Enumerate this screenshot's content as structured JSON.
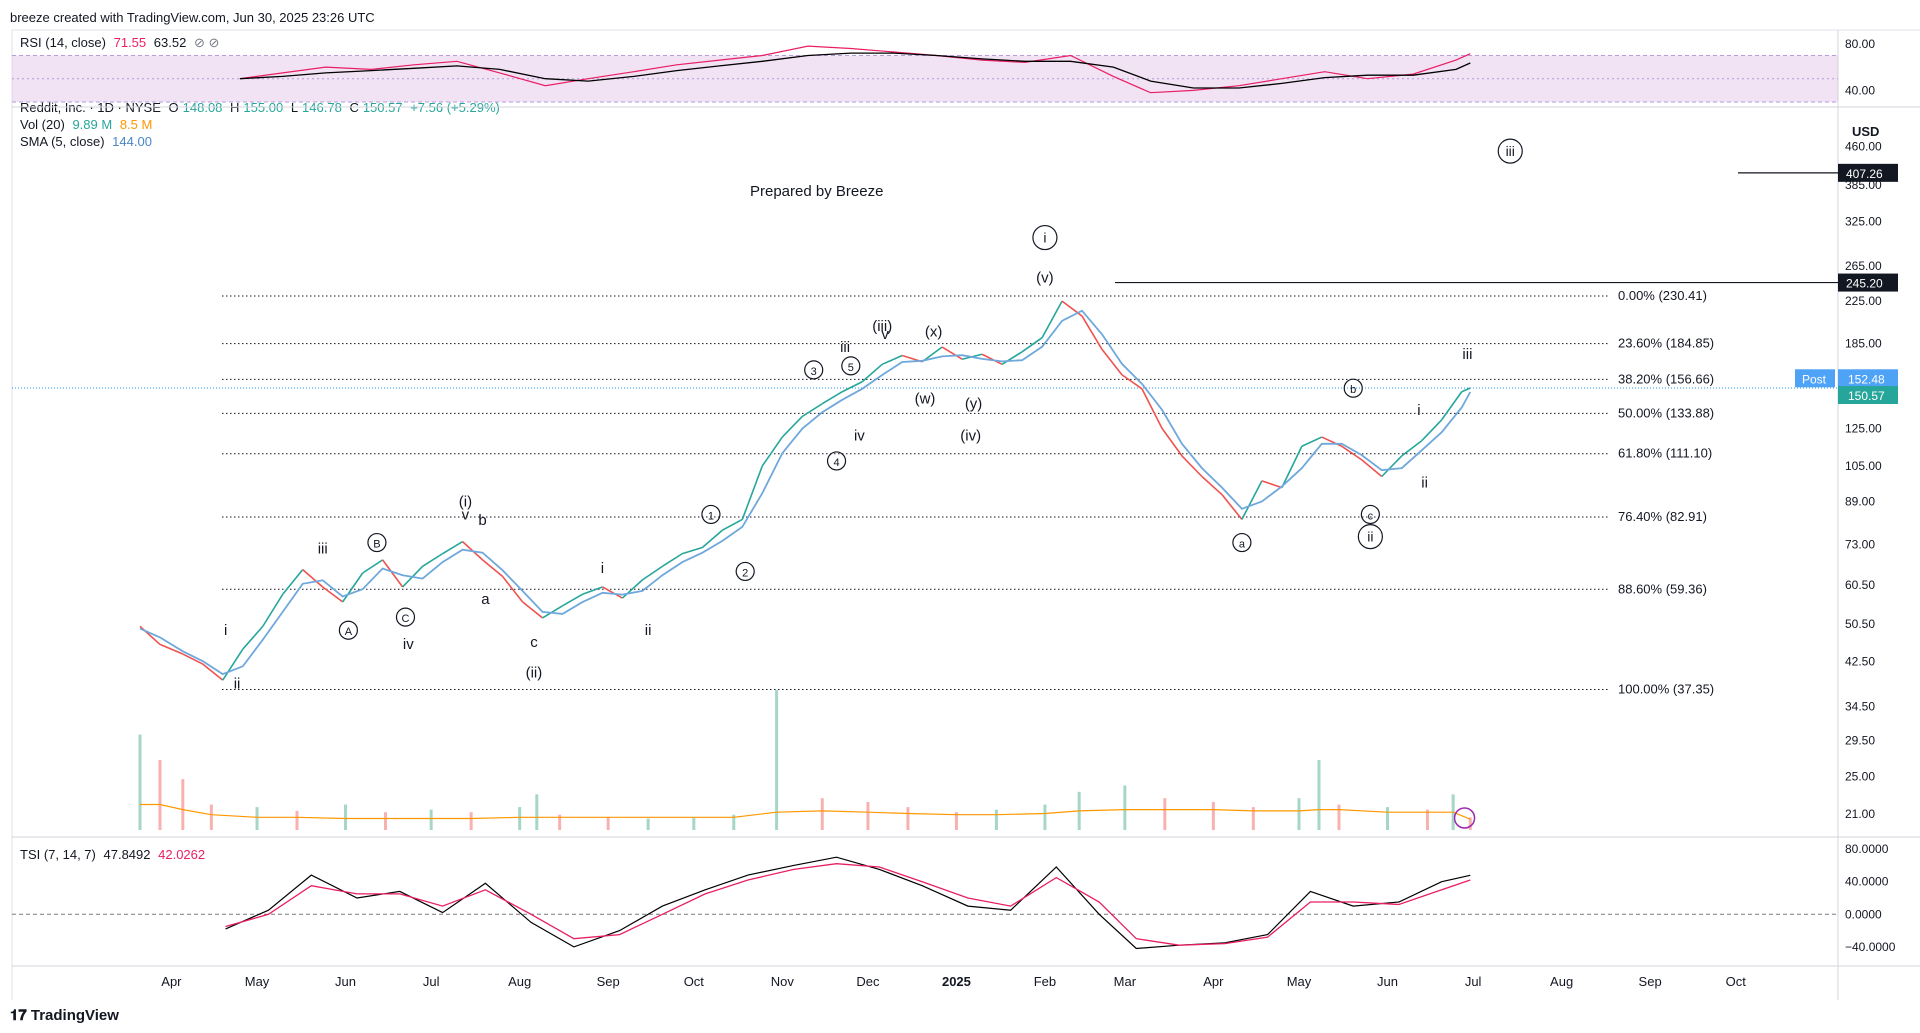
{
  "header": {
    "attribution": "breeze created with TradingView.com, Jun 30, 2025 23:26 UTC"
  },
  "footer": {
    "brand": "TradingView"
  },
  "legend": {
    "symbol": "Reddit, Inc. · 1D · NYSE",
    "o_label": "O",
    "o": "148.08",
    "h_label": "H",
    "h": "155.00",
    "l_label": "L",
    "l": "146.78",
    "c_label": "C",
    "c": "150.57",
    "chg": "+7.56 (+5.29%)",
    "vol_label": "Vol (20)",
    "vol_v1": "9.89 M",
    "vol_v2": "8.5 M",
    "sma_label": "SMA (5, close)",
    "sma_v": "144.00",
    "rsi_label": "RSI (14, close)",
    "rsi_v1": "71.55",
    "rsi_v2": "63.52",
    "rsi_icons": "⊘ ⊘",
    "tsi_label": "TSI (7, 14, 7)",
    "tsi_v1": "47.8492",
    "tsi_v2": "42.0262"
  },
  "annotation_title": "Prepared by Breeze",
  "colors": {
    "up": "#26a69a",
    "down": "#ef5350",
    "sma": "#6fa8dc",
    "rsi": "#e91e63",
    "rsi_ma": "#000000",
    "rsi_band": "#e1bee7",
    "vol_ma": "#ff9800",
    "tsi": "#000000",
    "tsi_signal": "#e91e63",
    "price_tag": "#2196f3"
  },
  "chart_data": {
    "type": "line",
    "symbol": "RDDT",
    "y_scale": "log",
    "currency": "USD",
    "ylim": [
      19.5,
      520
    ],
    "price_axis_ticks": [
      "460.00",
      "385.00",
      "325.00",
      "265.00",
      "225.00",
      "185.00",
      "125.00",
      "105.00",
      "89.00",
      "73.00",
      "60.50",
      "50.50",
      "42.50",
      "34.50",
      "29.50",
      "25.00",
      "21.00"
    ],
    "x_months": [
      "Apr",
      "May",
      "Jun",
      "Jul",
      "Aug",
      "Sep",
      "Oct",
      "Nov",
      "Dec",
      "2025",
      "Feb",
      "Mar",
      "Apr",
      "May",
      "Jun",
      "Jul",
      "Aug",
      "Sep",
      "Oct"
    ],
    "series": [
      {
        "name": "Reddit, Inc.",
        "x": [
          "2024-03-21",
          "2024-03-28",
          "2024-04-05",
          "2024-04-12",
          "2024-04-19",
          "2024-04-26",
          "2024-05-03",
          "2024-05-10",
          "2024-05-17",
          "2024-05-24",
          "2024-05-31",
          "2024-06-07",
          "2024-06-14",
          "2024-06-21",
          "2024-06-28",
          "2024-07-05",
          "2024-07-12",
          "2024-07-19",
          "2024-07-26",
          "2024-08-02",
          "2024-08-09",
          "2024-08-16",
          "2024-08-23",
          "2024-08-30",
          "2024-09-06",
          "2024-09-13",
          "2024-09-20",
          "2024-09-27",
          "2024-10-04",
          "2024-10-11",
          "2024-10-18",
          "2024-10-25",
          "2024-11-01",
          "2024-11-08",
          "2024-11-15",
          "2024-11-22",
          "2024-11-29",
          "2024-12-06",
          "2024-12-13",
          "2024-12-20",
          "2024-12-27",
          "2025-01-03",
          "2025-01-10",
          "2025-01-17",
          "2025-01-24",
          "2025-01-31",
          "2025-02-07",
          "2025-02-14",
          "2025-02-21",
          "2025-02-28",
          "2025-03-07",
          "2025-03-14",
          "2025-03-21",
          "2025-03-28",
          "2025-04-04",
          "2025-04-11",
          "2025-04-18",
          "2025-04-25",
          "2025-05-02",
          "2025-05-09",
          "2025-05-16",
          "2025-05-23",
          "2025-05-30",
          "2025-06-06",
          "2025-06-13",
          "2025-06-20",
          "2025-06-27",
          "2025-06-30"
        ],
        "values": [
          50,
          46,
          44,
          42,
          39,
          45,
          50,
          58,
          65,
          60,
          56,
          64,
          68,
          60,
          66,
          70,
          74,
          68,
          63,
          56,
          52,
          55,
          58,
          60,
          57,
          62,
          66,
          70,
          72,
          78,
          82,
          105,
          120,
          132,
          140,
          148,
          155,
          168,
          175,
          170,
          182,
          172,
          176,
          168,
          178,
          190,
          225,
          210,
          180,
          160,
          150,
          125,
          110,
          100,
          92,
          82,
          98,
          95,
          115,
          120,
          115,
          108,
          100,
          110,
          118,
          130,
          148,
          150.57
        ]
      }
    ],
    "fibonacci_levels": [
      {
        "label": "0.00% (230.41)",
        "value": 230.41
      },
      {
        "label": "23.60% (184.85)",
        "value": 184.85
      },
      {
        "label": "38.20% (156.66)",
        "value": 156.66
      },
      {
        "label": "50.00% (133.88)",
        "value": 133.88
      },
      {
        "label": "61.80% (111.10)",
        "value": 111.1
      },
      {
        "label": "76.40% (82.91)",
        "value": 82.91
      },
      {
        "label": "88.60% (59.36)",
        "value": 59.36
      },
      {
        "label": "100.00% (37.35)",
        "value": 37.35
      }
    ],
    "horizontal_lines": [
      {
        "label": "407.26",
        "value": 407.26
      },
      {
        "label": "245.20",
        "value": 245.2
      }
    ],
    "price_tags": [
      {
        "label": "Post",
        "value": 152.48,
        "text": "152.48"
      },
      {
        "label": "",
        "value": 150.57,
        "text": "150.57"
      }
    ],
    "wave_labels": [
      {
        "text": "i",
        "date": "2024-04-20",
        "price": 48,
        "circled": false
      },
      {
        "text": "ii",
        "date": "2024-04-24",
        "price": 37.5,
        "circled": false
      },
      {
        "text": "iii",
        "date": "2024-05-24",
        "price": 70,
        "circled": false
      },
      {
        "text": "A",
        "date": "2024-06-02",
        "price": 48,
        "circled": true
      },
      {
        "text": "B",
        "date": "2024-06-12",
        "price": 72,
        "circled": true
      },
      {
        "text": "C",
        "date": "2024-06-22",
        "price": 51,
        "circled": true
      },
      {
        "text": "iv",
        "date": "2024-06-23",
        "price": 45,
        "circled": false
      },
      {
        "text": "(i)",
        "date": "2024-07-13",
        "price": 87,
        "circled": false
      },
      {
        "text": "v",
        "date": "2024-07-13",
        "price": 82,
        "circled": false
      },
      {
        "text": "b",
        "date": "2024-07-19",
        "price": 80,
        "circled": false
      },
      {
        "text": "a",
        "date": "2024-07-20",
        "price": 55.5,
        "circled": false
      },
      {
        "text": "c",
        "date": "2024-08-06",
        "price": 45.5,
        "circled": false
      },
      {
        "text": "(ii)",
        "date": "2024-08-06",
        "price": 39.5,
        "circled": false
      },
      {
        "text": "i",
        "date": "2024-08-30",
        "price": 64,
        "circled": false
      },
      {
        "text": "ii",
        "date": "2024-09-15",
        "price": 48,
        "circled": false
      },
      {
        "text": "1",
        "date": "2024-10-07",
        "price": 82,
        "circled": true
      },
      {
        "text": "2",
        "date": "2024-10-19",
        "price": 63,
        "circled": true
      },
      {
        "text": "3",
        "date": "2024-11-12",
        "price": 160,
        "circled": true
      },
      {
        "text": "4",
        "date": "2024-11-20",
        "price": 105,
        "circled": true
      },
      {
        "text": "5",
        "date": "2024-11-25",
        "price": 163,
        "circled": true
      },
      {
        "text": "iii",
        "date": "2024-11-23",
        "price": 178,
        "circled": false
      },
      {
        "text": "iv",
        "date": "2024-11-28",
        "price": 118,
        "circled": false
      },
      {
        "text": "(iii)",
        "date": "2024-12-06",
        "price": 196,
        "circled": false
      },
      {
        "text": "v",
        "date": "2024-12-07",
        "price": 189,
        "circled": false
      },
      {
        "text": "(x)",
        "date": "2024-12-24",
        "price": 191,
        "circled": false
      },
      {
        "text": "(w)",
        "date": "2024-12-21",
        "price": 140,
        "circled": false
      },
      {
        "text": "(y)",
        "date": "2025-01-07",
        "price": 137,
        "circled": false
      },
      {
        "text": "(iv)",
        "date": "2025-01-06",
        "price": 118,
        "circled": false
      },
      {
        "text": "i",
        "date": "2025-02-01",
        "price": 295,
        "circled": true
      },
      {
        "text": "(v)",
        "date": "2025-02-01",
        "price": 245,
        "circled": false
      },
      {
        "text": "a",
        "date": "2025-04-11",
        "price": 72,
        "circled": true
      },
      {
        "text": "b",
        "date": "2025-05-20",
        "price": 147,
        "circled": true
      },
      {
        "text": "c",
        "date": "2025-05-26",
        "price": 82,
        "circled": true
      },
      {
        "text": "ii",
        "date": "2025-05-26",
        "price": 74,
        "circled": true
      },
      {
        "text": "i",
        "date": "2025-06-12",
        "price": 133,
        "circled": false
      },
      {
        "text": "ii",
        "date": "2025-06-14",
        "price": 95,
        "circled": false
      },
      {
        "text": "iii",
        "date": "2025-06-29",
        "price": 172,
        "circled": false
      },
      {
        "text": "iii",
        "date": "2025-07-14",
        "price": 440,
        "circled": true
      }
    ]
  },
  "rsi_panel": {
    "ticks": [
      "80.00",
      "40.00"
    ],
    "ylim": [
      30,
      85
    ],
    "band": [
      30,
      70
    ],
    "x": [
      "2024-04-25",
      "2024-05-10",
      "2024-05-25",
      "2024-06-10",
      "2024-06-25",
      "2024-07-10",
      "2024-07-25",
      "2024-08-10",
      "2024-08-25",
      "2024-09-10",
      "2024-09-25",
      "2024-10-10",
      "2024-10-25",
      "2024-11-10",
      "2024-11-25",
      "2024-12-10",
      "2024-12-25",
      "2025-01-10",
      "2025-01-25",
      "2025-02-10",
      "2025-02-25",
      "2025-03-10",
      "2025-03-25",
      "2025-04-10",
      "2025-04-25",
      "2025-05-10",
      "2025-05-25",
      "2025-06-10",
      "2025-06-25",
      "2025-06-30"
    ],
    "rsi": [
      50,
      55,
      60,
      58,
      62,
      65,
      55,
      44,
      50,
      56,
      62,
      66,
      70,
      78,
      76,
      73,
      70,
      66,
      64,
      70,
      52,
      38,
      40,
      44,
      50,
      56,
      50,
      54,
      66,
      71.55
    ],
    "rsi_ma": [
      50,
      52,
      55,
      57,
      59,
      61,
      58,
      50,
      48,
      52,
      57,
      61,
      65,
      70,
      72,
      72,
      70,
      67,
      65,
      65,
      60,
      48,
      42,
      42,
      46,
      51,
      53,
      53,
      58,
      63.52
    ]
  },
  "tsi_panel": {
    "ticks": [
      "80.0000",
      "40.0000",
      "0.0000",
      "−40.0000"
    ],
    "ylim": [
      -50,
      85
    ],
    "x": [
      "2024-04-20",
      "2024-05-05",
      "2024-05-20",
      "2024-06-05",
      "2024-06-20",
      "2024-07-05",
      "2024-07-20",
      "2024-08-05",
      "2024-08-20",
      "2024-09-05",
      "2024-09-20",
      "2024-10-05",
      "2024-10-20",
      "2024-11-05",
      "2024-11-20",
      "2024-12-05",
      "2024-12-20",
      "2025-01-05",
      "2025-01-20",
      "2025-02-05",
      "2025-02-20",
      "2025-03-05",
      "2025-03-20",
      "2025-04-05",
      "2025-04-20",
      "2025-05-05",
      "2025-05-20",
      "2025-06-05",
      "2025-06-20",
      "2025-06-30"
    ],
    "tsi": [
      -18,
      5,
      48,
      20,
      28,
      2,
      38,
      -10,
      -40,
      -20,
      10,
      30,
      48,
      60,
      70,
      55,
      35,
      10,
      5,
      58,
      0,
      -42,
      -38,
      -35,
      -25,
      28,
      10,
      15,
      40,
      47.8492
    ],
    "signal": [
      -15,
      0,
      35,
      25,
      25,
      10,
      30,
      0,
      -30,
      -25,
      0,
      25,
      42,
      55,
      62,
      58,
      40,
      20,
      10,
      45,
      15,
      -30,
      -38,
      -36,
      -28,
      15,
      15,
      12,
      30,
      42.0262
    ]
  },
  "volume_panel": {
    "ylim_millions": [
      0,
      110
    ],
    "x": [
      "2024-03-21",
      "2024-03-28",
      "2024-04-05",
      "2024-04-15",
      "2024-05-01",
      "2024-05-15",
      "2024-06-01",
      "2024-06-15",
      "2024-07-01",
      "2024-07-15",
      "2024-08-01",
      "2024-08-07",
      "2024-08-15",
      "2024-09-01",
      "2024-09-15",
      "2024-10-01",
      "2024-10-15",
      "2024-10-30",
      "2024-11-15",
      "2024-12-01",
      "2024-12-15",
      "2025-01-01",
      "2025-01-15",
      "2025-02-01",
      "2025-02-13",
      "2025-03-01",
      "2025-03-15",
      "2025-04-01",
      "2025-04-15",
      "2025-05-01",
      "2025-05-08",
      "2025-05-15",
      "2025-06-01",
      "2025-06-15",
      "2025-06-24",
      "2025-06-30"
    ],
    "values": [
      75,
      55,
      40,
      20,
      18,
      15,
      20,
      14,
      16,
      14,
      18,
      28,
      12,
      10,
      9,
      10,
      12,
      110,
      25,
      22,
      18,
      14,
      16,
      20,
      30,
      35,
      25,
      22,
      18,
      25,
      55,
      20,
      18,
      16,
      28,
      9.89
    ],
    "ma": [
      20,
      20,
      16,
      12,
      10,
      10,
      9,
      9,
      9,
      9,
      10,
      10,
      10,
      10,
      10,
      10,
      10,
      14,
      15,
      14,
      13,
      12,
      12,
      13,
      15,
      16,
      16,
      16,
      15,
      15,
      16,
      16,
      14,
      14,
      14,
      8.5
    ]
  }
}
